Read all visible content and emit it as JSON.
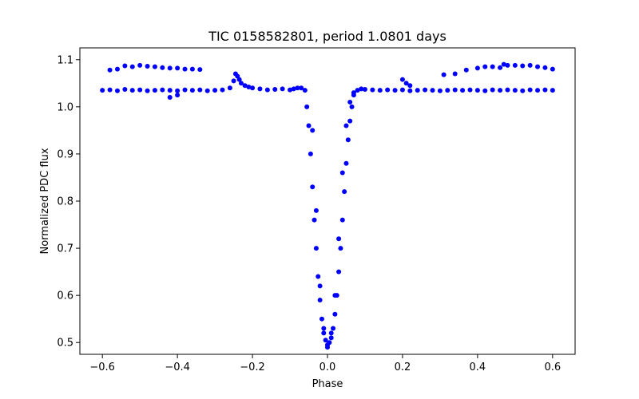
{
  "chart_data": {
    "type": "scatter",
    "title": "TIC 0158582801, period 1.0801 days",
    "xlabel": "Phase",
    "ylabel": "Normalized PDC flux",
    "xlim": [
      -0.66,
      0.66
    ],
    "ylim": [
      0.475,
      1.125
    ],
    "xticks": [
      -0.6,
      -0.4,
      -0.2,
      0.0,
      0.2,
      0.4,
      0.6
    ],
    "xtick_labels": [
      "−0.6",
      "−0.4",
      "−0.2",
      "0.0",
      "0.2",
      "0.4",
      "0.6"
    ],
    "yticks": [
      0.5,
      0.6,
      0.7,
      0.8,
      0.9,
      1.0,
      1.1
    ],
    "ytick_labels": [
      "0.5",
      "0.6",
      "0.7",
      "0.8",
      "0.9",
      "1.0",
      "1.1"
    ],
    "grid": false,
    "legend": "none",
    "marker_color": "#0000ff",
    "series": [
      {
        "x": [
          -0.6,
          -0.58,
          -0.56,
          -0.54,
          -0.52,
          -0.5,
          -0.48,
          -0.46,
          -0.44,
          -0.42,
          -0.4,
          -0.38,
          -0.36,
          -0.34,
          -0.32,
          -0.3,
          -0.28,
          -0.26,
          -0.25,
          -0.245,
          -0.24,
          -0.235,
          -0.23,
          -0.22,
          -0.21,
          -0.2,
          -0.18,
          -0.16,
          -0.14,
          -0.12,
          -0.1,
          -0.09,
          -0.08,
          -0.07,
          -0.06,
          -0.055,
          -0.05,
          -0.045,
          -0.04,
          -0.035,
          -0.03,
          -0.025,
          -0.02,
          -0.015,
          -0.01,
          -0.005,
          0.0,
          0.005,
          0.01,
          0.015,
          0.02,
          0.025,
          0.03,
          0.035,
          0.04,
          0.045,
          0.05,
          0.055,
          0.06,
          0.065,
          0.07,
          0.08,
          0.09,
          0.1,
          0.12,
          0.14,
          0.16,
          0.18,
          0.2,
          0.22,
          0.24,
          0.26,
          0.28,
          0.3,
          0.32,
          0.34,
          0.36,
          0.38,
          0.4,
          0.42,
          0.44,
          0.46,
          0.48,
          0.5,
          0.52,
          0.54,
          0.56,
          0.58,
          0.6,
          -0.58,
          -0.56,
          -0.54,
          -0.52,
          -0.5,
          -0.48,
          -0.46,
          -0.44,
          -0.42,
          -0.4,
          -0.38,
          -0.36,
          -0.34,
          -0.42,
          -0.4,
          0.2,
          0.21,
          0.22,
          0.31,
          0.34,
          0.37,
          0.4,
          0.42,
          0.44,
          0.46,
          0.47,
          0.48,
          0.5,
          0.52,
          0.54,
          0.56,
          0.58,
          0.6,
          -0.04,
          -0.03,
          -0.02,
          -0.01,
          0.0,
          0.01,
          0.02,
          0.03,
          0.04,
          0.05,
          0.06,
          0.07
        ],
        "y": [
          1.035,
          1.036,
          1.034,
          1.037,
          1.035,
          1.036,
          1.034,
          1.035,
          1.036,
          1.035,
          1.034,
          1.036,
          1.035,
          1.036,
          1.034,
          1.035,
          1.036,
          1.04,
          1.055,
          1.07,
          1.065,
          1.058,
          1.05,
          1.045,
          1.042,
          1.04,
          1.038,
          1.036,
          1.037,
          1.038,
          1.036,
          1.038,
          1.04,
          1.04,
          1.035,
          1.0,
          0.96,
          0.9,
          0.83,
          0.76,
          0.7,
          0.64,
          0.59,
          0.55,
          0.52,
          0.505,
          0.495,
          0.5,
          0.51,
          0.53,
          0.56,
          0.6,
          0.65,
          0.7,
          0.76,
          0.82,
          0.88,
          0.93,
          0.97,
          1.0,
          1.025,
          1.035,
          1.038,
          1.037,
          1.036,
          1.035,
          1.036,
          1.035,
          1.036,
          1.034,
          1.035,
          1.036,
          1.035,
          1.034,
          1.035,
          1.036,
          1.035,
          1.036,
          1.035,
          1.034,
          1.036,
          1.035,
          1.036,
          1.035,
          1.034,
          1.036,
          1.035,
          1.036,
          1.035,
          1.078,
          1.08,
          1.087,
          1.085,
          1.088,
          1.086,
          1.085,
          1.083,
          1.082,
          1.082,
          1.08,
          1.08,
          1.079,
          1.02,
          1.025,
          1.058,
          1.05,
          1.045,
          1.068,
          1.07,
          1.078,
          1.082,
          1.085,
          1.085,
          1.083,
          1.09,
          1.088,
          1.088,
          1.087,
          1.088,
          1.085,
          1.083,
          1.08,
          0.95,
          0.78,
          0.62,
          0.53,
          0.49,
          0.52,
          0.6,
          0.72,
          0.86,
          0.96,
          1.01,
          1.03
        ]
      }
    ]
  }
}
